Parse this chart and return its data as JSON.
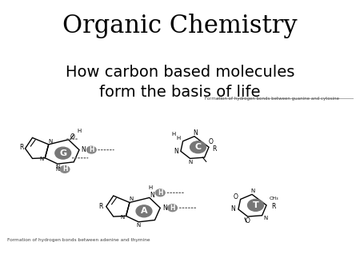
{
  "title": "Organic Chemistry",
  "subtitle": "How carbon based molecules\nform the basis of life",
  "title_fontsize": 22,
  "subtitle_fontsize": 14,
  "bg_color": "#ffffff",
  "text_color": "#000000",
  "caption_top": "Formation of hydrogen bonds between guanine and cytosine",
  "caption_bottom": "Formation of hydrogen bonds between adenine and thymine",
  "guanine_label": "G",
  "cytosine_label": "C",
  "adenine_label": "A",
  "thymine_label": "T",
  "circle_color": "#888888",
  "line_color": "#000000",
  "dot_color": "#666666"
}
